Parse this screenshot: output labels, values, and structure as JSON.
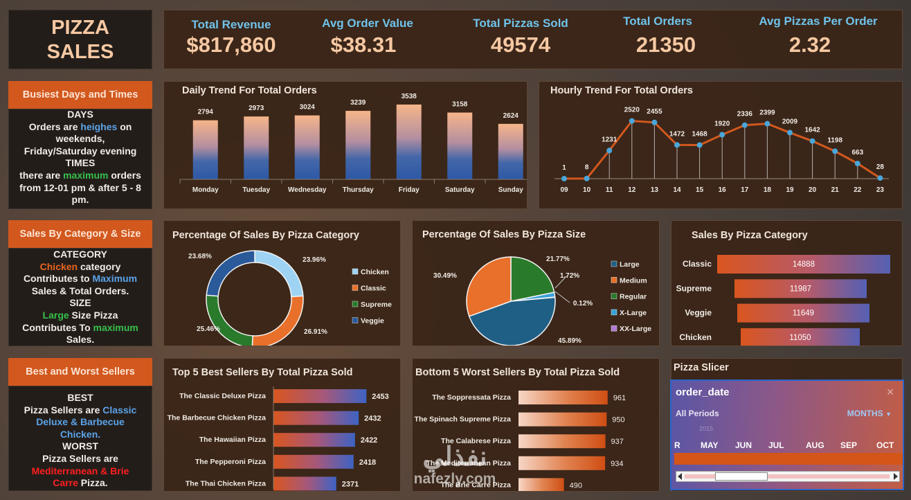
{
  "title": {
    "line1": "PIZZA",
    "line2": "SALES"
  },
  "kpis": [
    {
      "label": "Total Revenue",
      "value": "$817,860"
    },
    {
      "label": "Avg Order Value",
      "value": "$38.31"
    },
    {
      "label": "Total Pizzas Sold",
      "value": "49574"
    },
    {
      "label": "Total Orders",
      "value": "21350"
    },
    {
      "label": "Avg Pizzas Per Order",
      "value": "2.32"
    }
  ],
  "side": {
    "busiest": {
      "heading": "Busiest Days and Times",
      "days_head": "DAYS",
      "t1": "Orders are",
      "t1_hl": "heighes",
      "t1_end": "on",
      "t2": "weekends,",
      "t3": "Friday/Saturday evening",
      "times_head": "TIMES",
      "t4": "there are",
      "t4_hl": "maximum",
      "t4_end": "orders",
      "t5": "from 12-01 pm & after 5 - 8",
      "t6": "pm."
    },
    "category": {
      "heading": "Sales By Category & Size",
      "cat_head": "CATEGORY",
      "c1_hl": "Chicken",
      "c1": "category",
      "c2": "Contributes to",
      "c2_hl": "Maximum",
      "c3": "Sales & Total Orders.",
      "size_head": "SIZE",
      "s1_hl": "Large",
      "s1": "Size Pizza",
      "s2": "Contributes To",
      "s2_hl": "maximum",
      "s3": "Sales."
    },
    "sellers": {
      "heading": "Best and Worst Sellers",
      "best_head": "BEST",
      "b1": "Pizza Sellers  are",
      "b1_hl": "Classic",
      "b2_hl": "Deluxe & Barbecue",
      "b3_hl": "Chicken.",
      "worst_head": "WORST",
      "w1": "Pizza Sellers are",
      "w2_hl": "Mediterranean & Brie",
      "w3_hl": "Carre",
      "w3": "Pizza."
    }
  },
  "slicer": {
    "panel_title": "Pizza Slicer",
    "field": "order_date",
    "periods": "All Periods",
    "level": "MONTHS",
    "year": "2015",
    "months": [
      "R",
      "MAY",
      "JUN",
      "JUL",
      "AUG",
      "SEP",
      "OCT"
    ]
  },
  "watermark": {
    "arabic": "نفذلي",
    "latin": "nafezly.com"
  },
  "colors": {
    "accent": "#d2581e",
    "kpi_label": "#6fc3ea",
    "kpi_value": "#f6c8a2",
    "line": "#d2581e",
    "point": "#4aa6d9"
  },
  "chart_data": [
    {
      "id": "daily",
      "type": "bar",
      "title": "Daily Trend For Total Orders",
      "categories": [
        "Monday",
        "Tuesday",
        "Wednesday",
        "Thursday",
        "Friday",
        "Saturday",
        "Sunday"
      ],
      "values": [
        2794,
        2973,
        3024,
        3239,
        3538,
        3158,
        2624
      ],
      "ylim": [
        0,
        3700
      ]
    },
    {
      "id": "hourly",
      "type": "line",
      "title": "Hourly Trend For Total Orders",
      "x": [
        "09",
        "10",
        "11",
        "12",
        "13",
        "14",
        "15",
        "16",
        "17",
        "18",
        "19",
        "20",
        "21",
        "22",
        "23"
      ],
      "values": [
        1,
        8,
        1231,
        2520,
        2455,
        1472,
        1468,
        1920,
        2336,
        2399,
        2009,
        1642,
        1198,
        663,
        28
      ],
      "ylim": [
        0,
        2600
      ]
    },
    {
      "id": "category_pct",
      "type": "pie",
      "variant": "donut",
      "title": "Percentage Of Sales By Pizza Category",
      "labels": [
        "Chicken",
        "Classic",
        "Supreme",
        "Veggie"
      ],
      "values": [
        23.96,
        26.91,
        25.46,
        23.68
      ],
      "value_labels": [
        "23.96%",
        "26.91%",
        "25.46%",
        "23.68%"
      ],
      "colors": [
        "#9fd3f4",
        "#e8702a",
        "#2a7a2c",
        "#2a5a9a"
      ]
    },
    {
      "id": "size_pct",
      "type": "pie",
      "title": "Percentage Of Sales By Pizza Size",
      "labels": [
        "Large",
        "Medium",
        "Regular",
        "X-Large",
        "XX-Large"
      ],
      "values": [
        45.89,
        30.49,
        21.77,
        1.72,
        0.12
      ],
      "value_labels": [
        "45.89%",
        "30.49%",
        "21.77%",
        "1.72%",
        "0.12%"
      ],
      "colors": [
        "#1f5f86",
        "#e8702a",
        "#2a7a2c",
        "#3aa0d8",
        "#b07ad6"
      ]
    },
    {
      "id": "category_sales",
      "type": "bar",
      "orientation": "horizontal",
      "title": "Sales By Pizza Category",
      "categories": [
        "Classic",
        "Supreme",
        "Veggie",
        "Chicken"
      ],
      "values": [
        14888,
        11987,
        11649,
        11050
      ]
    },
    {
      "id": "best5",
      "type": "bar",
      "orientation": "horizontal",
      "title": "Top 5 Best Sellers By Total Pizza Sold",
      "categories": [
        "The Classic Deluxe Pizza",
        "The Barbecue Chicken Pizza",
        "The Hawaiian Pizza",
        "The Pepperoni Pizza",
        "The Thai Chicken Pizza"
      ],
      "values": [
        2453,
        2432,
        2422,
        2418,
        2371
      ],
      "xlim": [
        2200,
        2460
      ]
    },
    {
      "id": "worst5",
      "type": "bar",
      "orientation": "horizontal",
      "title": "Bottom 5 Worst Sellers By Total Pizza Sold",
      "categories": [
        "The Soppressata Pizza",
        "The Spinach Supreme Pizza",
        "The Calabrese Pizza",
        "The Mediterranean Pizza",
        "The Brie Carre Pizza"
      ],
      "values": [
        961,
        950,
        937,
        934,
        490
      ],
      "xlim": [
        0,
        1000
      ]
    }
  ]
}
